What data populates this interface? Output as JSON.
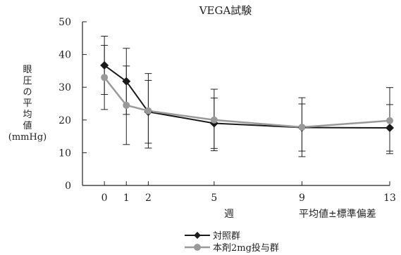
{
  "chart_data": {
    "type": "line",
    "title": "VEGA試験",
    "xlabel": "週",
    "ylabel": "眼圧の平均値(mmHg)",
    "note": "平均値±標準偏差",
    "x": [
      0,
      1,
      2,
      5,
      9,
      13
    ],
    "xlim": [
      -1,
      13
    ],
    "ylim": [
      0,
      50
    ],
    "yticks": [
      0,
      10,
      20,
      30,
      40,
      50
    ],
    "grid": false,
    "legend_position": "bottom",
    "series": [
      {
        "name": "対照群",
        "color": "#1a1a1a",
        "marker": "diamond",
        "values": [
          36.7,
          31.8,
          22.5,
          19.0,
          17.7,
          17.6
        ],
        "sd": [
          8.9,
          10.1,
          9.6,
          7.7,
          7.2,
          7.1
        ]
      },
      {
        "name": "本剤2mg投与群",
        "color": "#999999",
        "marker": "circle",
        "values": [
          33.0,
          24.5,
          22.8,
          20.0,
          17.8,
          19.8
        ],
        "sd": [
          9.8,
          12.0,
          11.4,
          9.4,
          9.0,
          10.1
        ]
      }
    ]
  }
}
